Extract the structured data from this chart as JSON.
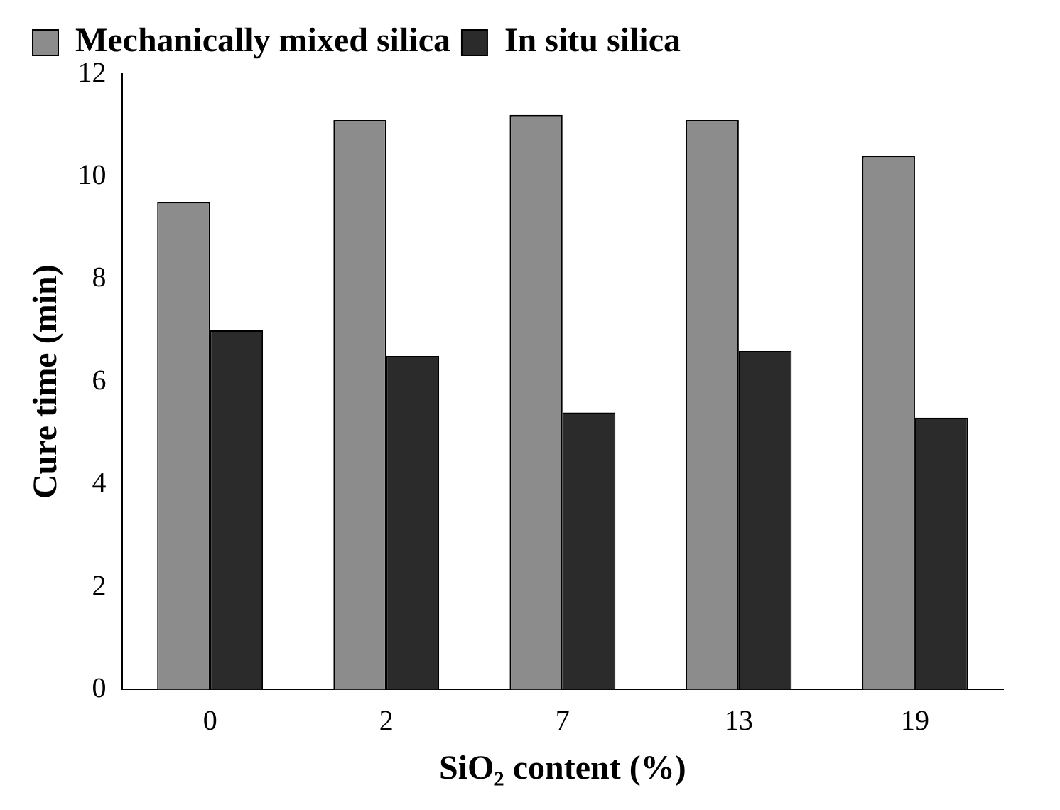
{
  "chart_data": {
    "type": "bar",
    "xlabel": "SiO₂ content (%)",
    "ylabel": "Cure time (min)",
    "categories": [
      "0",
      "2",
      "7",
      "13",
      "19"
    ],
    "series": [
      {
        "name": "Mechanically mixed silica",
        "color": "#8c8c8c",
        "values": [
          9.5,
          11.1,
          11.2,
          11.1,
          10.4
        ]
      },
      {
        "name": "In situ silica",
        "color": "#2b2b2b",
        "values": [
          7.0,
          6.5,
          5.4,
          6.6,
          5.3
        ]
      }
    ],
    "ylim": [
      0,
      12
    ],
    "yticks": [
      0,
      2,
      4,
      6,
      8,
      10,
      12
    ],
    "grid": false,
    "legend": "top"
  }
}
